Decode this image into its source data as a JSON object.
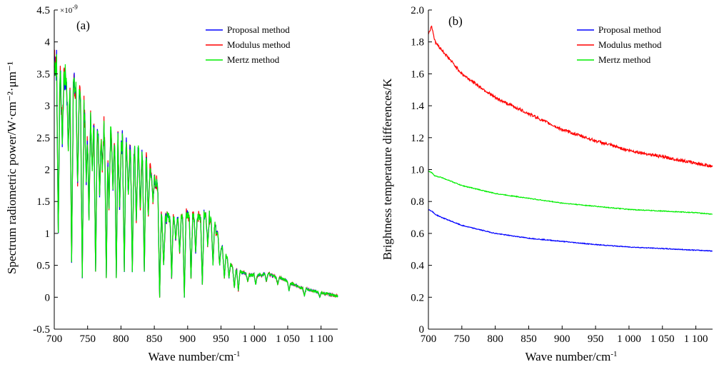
{
  "chart_data": [
    {
      "type": "line",
      "panel_label": "(a)",
      "xlabel": "Wave number/cm",
      "xlabel_sup": "-1",
      "ylabel": "Spectrum radiometric power/W·cm⁻²·μm⁻¹",
      "multiplier": "×10",
      "multiplier_sup": "-9",
      "xlim": [
        700,
        1125
      ],
      "ylim": [
        -0.5,
        4.5
      ],
      "xticks": [
        700,
        750,
        800,
        850,
        900,
        950,
        1000,
        1050,
        1100
      ],
      "xtick_labels": [
        "700",
        "750",
        "800",
        "850",
        "900",
        "950",
        "1 000",
        "1 050",
        "1 100"
      ],
      "yticks": [
        -0.5,
        0,
        0.5,
        1,
        1.5,
        2,
        2.5,
        3,
        3.5,
        4,
        4.5
      ],
      "ytick_labels": [
        "-0.5",
        "0",
        "0.5",
        "1",
        "1.5",
        "2",
        "2.5",
        "3",
        "3.5",
        "4",
        "4.5"
      ],
      "legend_position": "top-right",
      "grid": false,
      "envelope": {
        "x": [
          700,
          705,
          710,
          720,
          730,
          740,
          750,
          760,
          770,
          780,
          790,
          800,
          810,
          820,
          830,
          840,
          850,
          855,
          860,
          865,
          870,
          880,
          890,
          900,
          910,
          920,
          930,
          940,
          950,
          960,
          970,
          980,
          990,
          1000,
          1010,
          1020,
          1030,
          1040,
          1050,
          1060,
          1070,
          1080,
          1090,
          1100,
          1110,
          1120,
          1125
        ],
        "y": [
          3.7,
          3.6,
          3.5,
          3.4,
          3.3,
          3.0,
          2.85,
          2.75,
          2.65,
          2.55,
          2.5,
          2.45,
          2.35,
          2.3,
          2.2,
          2.05,
          1.9,
          1.7,
          1.3,
          1.2,
          1.25,
          1.3,
          1.25,
          1.3,
          1.25,
          1.25,
          1.3,
          1.15,
          0.8,
          0.6,
          0.45,
          0.4,
          0.35,
          0.35,
          0.35,
          0.38,
          0.32,
          0.3,
          0.25,
          0.2,
          0.15,
          0.12,
          0.1,
          0.07,
          0.05,
          0.03,
          0.02
        ]
      },
      "absorption_lines": {
        "x": [
          706,
          712,
          721,
          726,
          735,
          742,
          748,
          752,
          757,
          762,
          768,
          772,
          778,
          782,
          788,
          793,
          798,
          805,
          811,
          817,
          823,
          829,
          835,
          841,
          848,
          858,
          864,
          876,
          882,
          888,
          895,
          905,
          912,
          922,
          930,
          938,
          948,
          955,
          962,
          970,
          976,
          990,
          1002,
          1018,
          1035,
          1052,
          1075,
          1098
        ],
        "min": [
          1.0,
          2.4,
          2.3,
          0.55,
          1.8,
          0.3,
          1.8,
          1.2,
          2.0,
          0.4,
          1.6,
          2.0,
          0.3,
          1.4,
          1.7,
          0.3,
          1.4,
          0.4,
          1.6,
          0.4,
          1.2,
          1.4,
          0.4,
          1.3,
          1.5,
          0.0,
          0.5,
          0.3,
          0.9,
          0.7,
          0.0,
          0.3,
          0.7,
          0.2,
          0.8,
          0.5,
          0.5,
          0.3,
          0.3,
          0.15,
          0.1,
          0.25,
          0.2,
          0.25,
          0.2,
          0.1,
          0.02,
          0.0
        ]
      },
      "series": [
        {
          "name": "Proposal method",
          "color": "#0000ff"
        },
        {
          "name": "Modulus method",
          "color": "#ff0000"
        },
        {
          "name": "Mertz method",
          "color": "#00ee00"
        }
      ]
    },
    {
      "type": "line",
      "panel_label": "(b)",
      "xlabel": "Wave number/cm",
      "xlabel_sup": "-1",
      "ylabel": "Brightness temperature differences/K",
      "xlim": [
        700,
        1125
      ],
      "ylim": [
        0,
        2.0
      ],
      "xticks": [
        700,
        750,
        800,
        850,
        900,
        950,
        1000,
        1050,
        1100
      ],
      "xtick_labels": [
        "700",
        "750",
        "800",
        "850",
        "900",
        "950",
        "1 000",
        "1 050",
        "1 100"
      ],
      "yticks": [
        0,
        0.2,
        0.4,
        0.6,
        0.8,
        1.0,
        1.2,
        1.4,
        1.6,
        1.8,
        2.0
      ],
      "ytick_labels": [
        "0",
        "0.2",
        "0.4",
        "0.6",
        "0.8",
        "1.0",
        "1.2",
        "1.4",
        "1.6",
        "1.8",
        "2.0"
      ],
      "legend_position": "top-right",
      "grid": false,
      "x": [
        700,
        705,
        710,
        720,
        750,
        800,
        850,
        900,
        950,
        1000,
        1050,
        1100,
        1125
      ],
      "series": [
        {
          "name": "Proposal method",
          "color": "#0000ff",
          "values": [
            0.75,
            0.74,
            0.72,
            0.7,
            0.65,
            0.6,
            0.57,
            0.55,
            0.53,
            0.515,
            0.505,
            0.495,
            0.49
          ]
        },
        {
          "name": "Modulus method",
          "color": "#ff0000",
          "values": [
            1.85,
            1.9,
            1.8,
            1.75,
            1.6,
            1.45,
            1.35,
            1.25,
            1.18,
            1.12,
            1.08,
            1.04,
            1.02
          ]
        },
        {
          "name": "Mertz method",
          "color": "#00ee00",
          "values": [
            0.99,
            0.98,
            0.96,
            0.95,
            0.9,
            0.85,
            0.82,
            0.79,
            0.77,
            0.75,
            0.74,
            0.73,
            0.72
          ]
        }
      ]
    }
  ]
}
